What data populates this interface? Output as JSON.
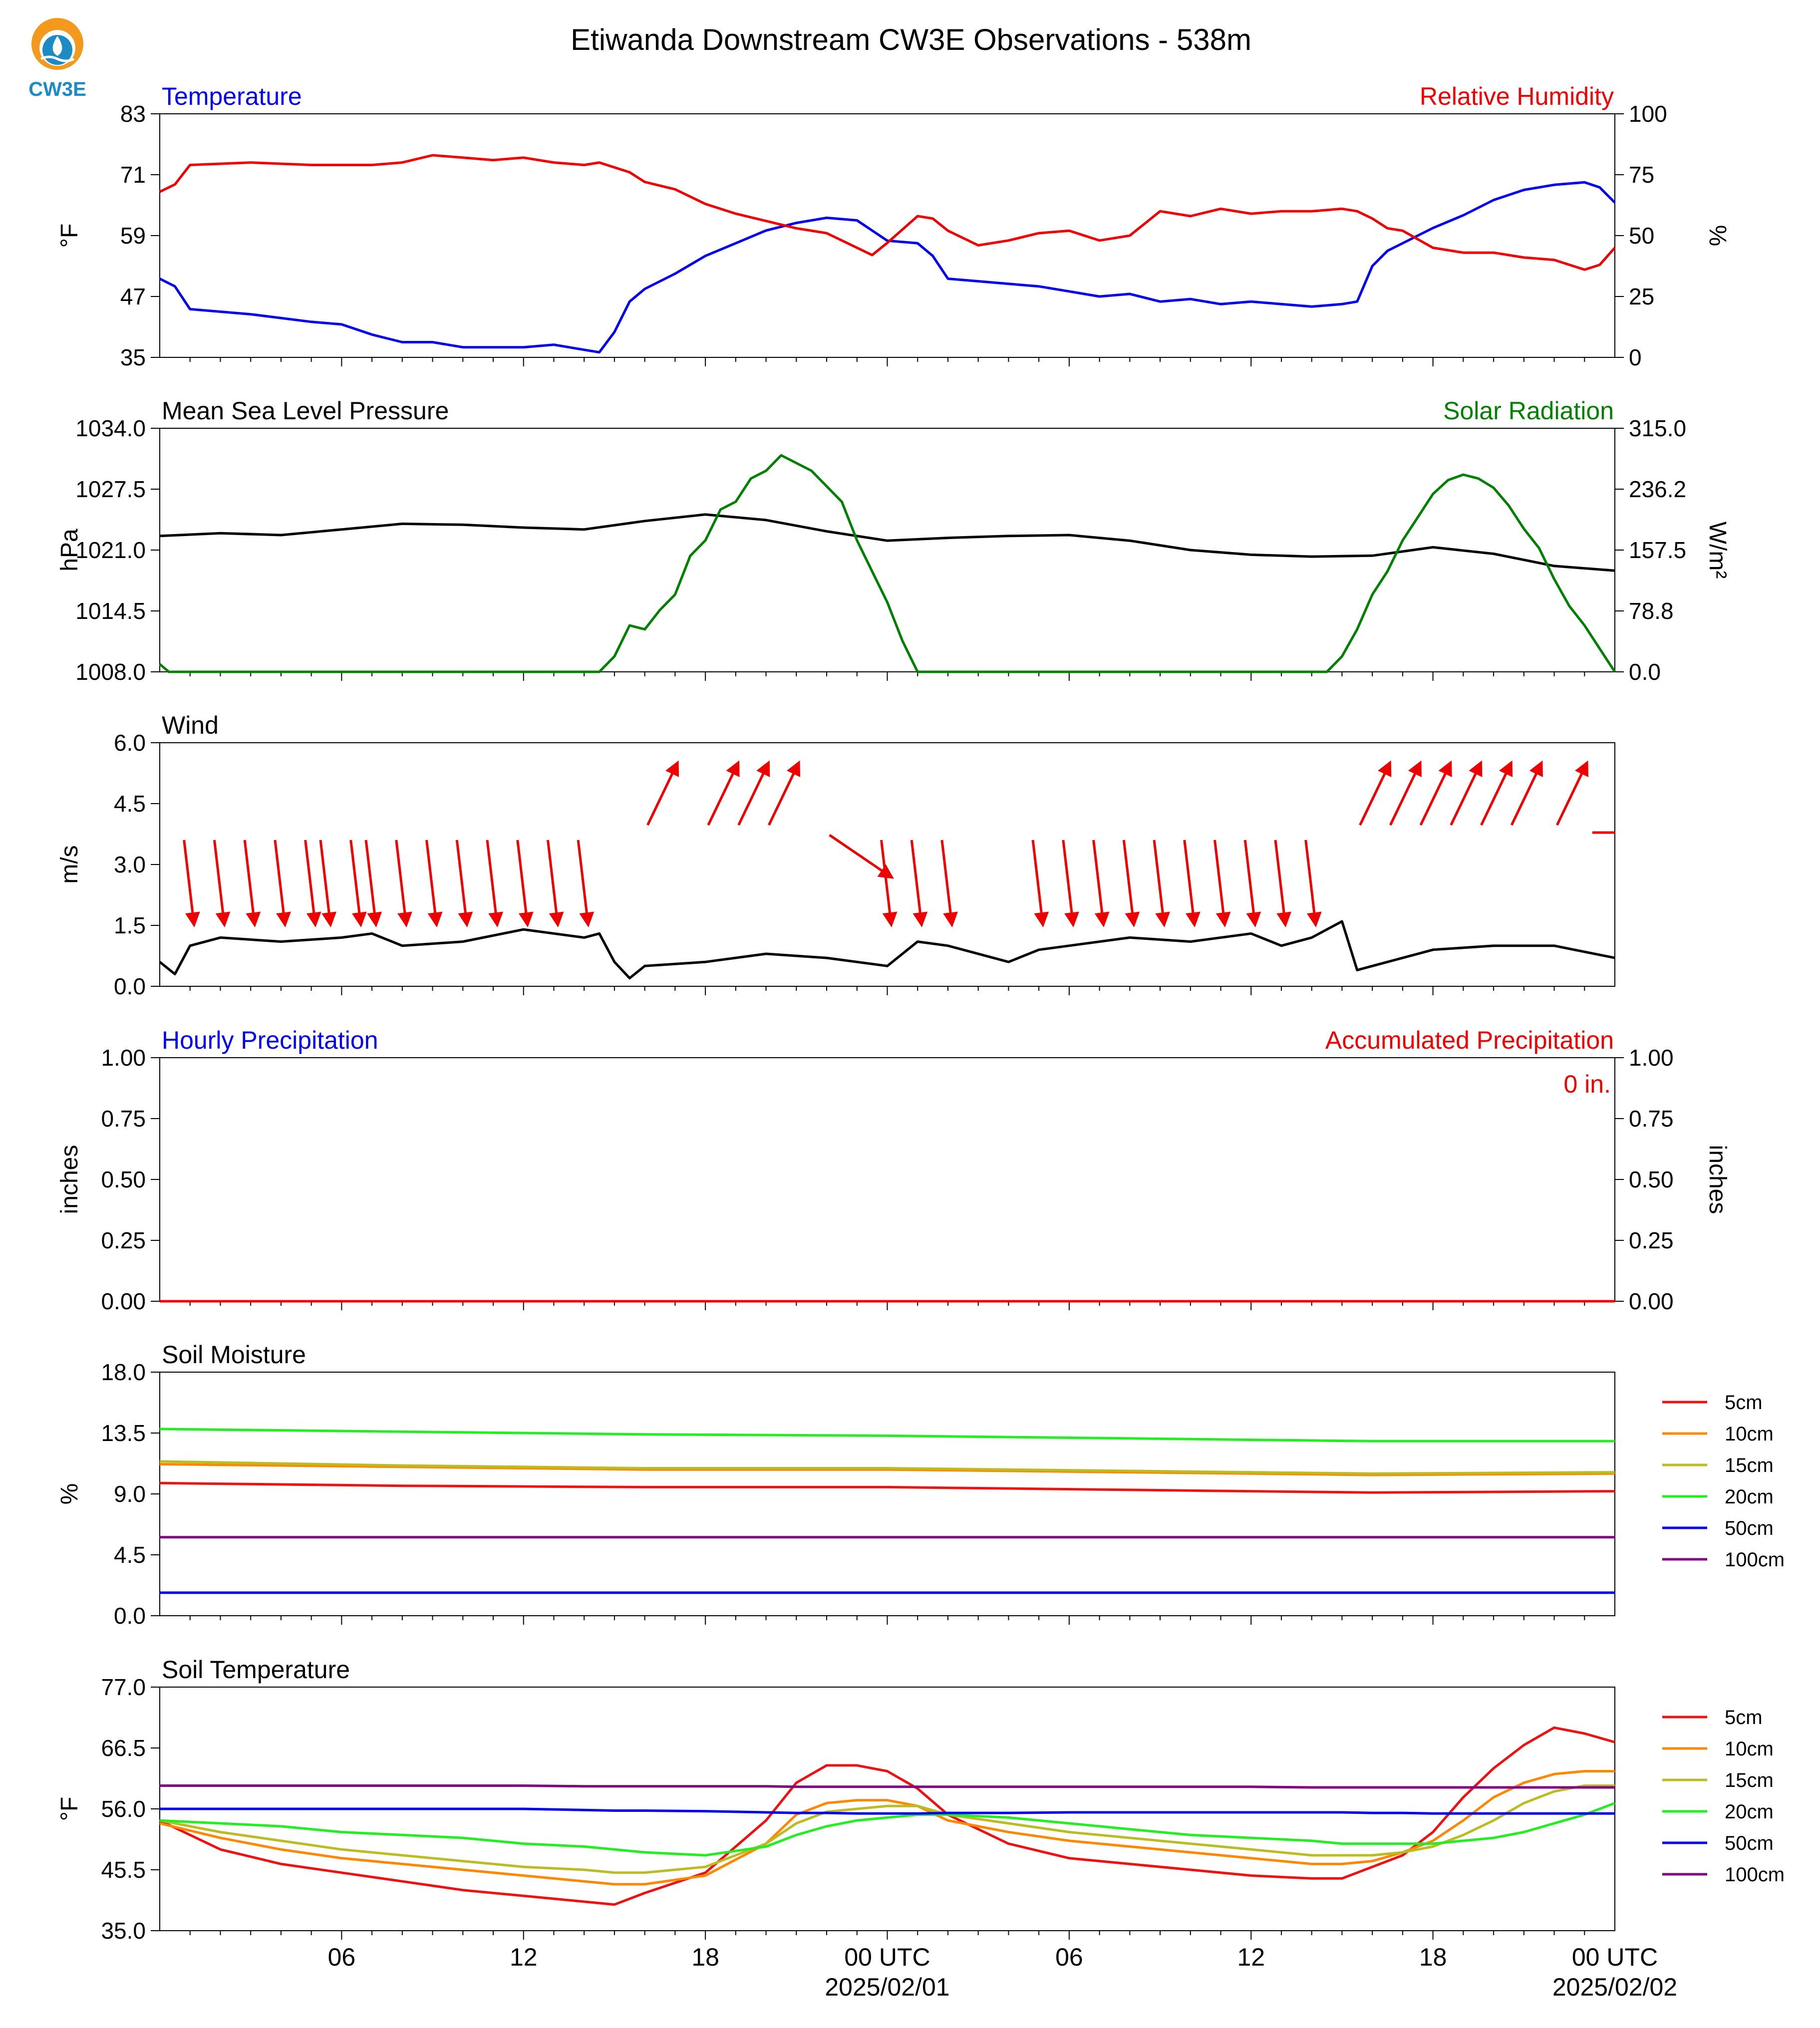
{
  "figure": {
    "title": "Etiwanda Downstream CW3E Observations - 538m",
    "logo": {
      "text": "CW3E",
      "name": "cw3e-logo"
    },
    "x_axis": {
      "tick_labels": [
        "06",
        "12",
        "18",
        "00 UTC",
        "06",
        "12",
        "18",
        "00 UTC"
      ],
      "date_labels": [
        "2025/02/01",
        "2025/02/02"
      ]
    }
  },
  "chart_data": [
    {
      "id": "temp_rh",
      "type": "line",
      "title_left": "Temperature",
      "title_right": "Relative Humidity",
      "ylabel": "°F",
      "ylabel_right": "%",
      "ylim": [
        35,
        83
      ],
      "yticks": [
        "35",
        "47",
        "59",
        "71",
        "83"
      ],
      "ylim_right": [
        0,
        100
      ],
      "yticks_right": [
        "0",
        "25",
        "50",
        "75",
        "100"
      ],
      "x_hours": [
        0,
        0.5,
        1,
        3,
        5,
        6,
        7,
        8,
        9,
        10,
        11,
        12,
        13,
        14,
        14.5,
        15,
        15.5,
        16,
        17,
        18,
        19,
        20,
        21,
        22,
        23,
        23.5,
        24,
        25,
        25.5,
        26,
        27,
        28,
        29,
        30,
        31,
        32,
        33,
        34,
        35,
        36,
        37,
        38,
        39,
        39.5,
        40,
        40.5,
        41,
        42,
        43,
        44,
        45,
        46,
        47,
        47.5,
        48
      ],
      "series": [
        {
          "name": "Temperature",
          "color": "#0000ee",
          "values": [
            50.5,
            49.0,
            44.5,
            43.5,
            42.0,
            41.5,
            39.5,
            38.0,
            38.0,
            37.0,
            37.0,
            37.0,
            37.5,
            36.5,
            36.0,
            40.0,
            46.0,
            48.5,
            51.5,
            55.0,
            57.5,
            60.0,
            61.5,
            62.5,
            62.0,
            60.0,
            58.0,
            57.5,
            55.0,
            50.5,
            50.0,
            49.5,
            49.0,
            48.0,
            47.0,
            47.5,
            46.0,
            46.5,
            45.5,
            46.0,
            45.5,
            45.0,
            45.5,
            46.0,
            53.0,
            56.0,
            57.5,
            60.5,
            63.0,
            66.0,
            68.0,
            69.0,
            69.5,
            68.5,
            65.5
          ]
        },
        {
          "name": "Relative Humidity",
          "color": "#ee0000",
          "values": [
            68,
            71,
            79,
            80,
            79,
            79,
            79,
            80,
            83,
            82,
            81,
            82,
            80,
            79,
            80,
            78,
            76,
            72,
            69,
            63,
            59,
            56,
            53,
            51,
            45,
            42,
            47,
            58,
            57,
            52,
            46,
            48,
            51,
            52,
            48,
            50,
            60,
            58,
            61,
            59,
            60,
            60,
            61,
            60,
            57,
            53,
            52,
            45,
            43,
            43,
            41,
            40,
            36,
            38,
            45
          ]
        }
      ]
    },
    {
      "id": "pressure_solar",
      "type": "line",
      "title_left": "Mean Sea Level Pressure",
      "title_right": "Solar Radiation",
      "ylabel": "hPa",
      "ylabel_right": "W/m²",
      "ylim": [
        1008.0,
        1034.0
      ],
      "yticks": [
        "1008.0",
        "1014.5",
        "1021.0",
        "1027.5",
        "1034.0"
      ],
      "ylim_right": [
        0.0,
        315.0
      ],
      "yticks_right": [
        "0.0",
        "78.8",
        "157.5",
        "236.2",
        "315.0"
      ],
      "series": [
        {
          "name": "Mean Sea Level Pressure",
          "color": "#000000",
          "x_hours": [
            0,
            2,
            4,
            6,
            8,
            10,
            12,
            14,
            16,
            18,
            20,
            22,
            24,
            26,
            28,
            30,
            32,
            34,
            36,
            38,
            40,
            42,
            44,
            46,
            48
          ],
          "values": [
            1022.5,
            1022.8,
            1022.6,
            1023.2,
            1023.8,
            1023.7,
            1023.4,
            1023.2,
            1024.1,
            1024.8,
            1024.2,
            1023.0,
            1022.0,
            1022.3,
            1022.5,
            1022.6,
            1022.0,
            1021.0,
            1020.5,
            1020.3,
            1020.4,
            1021.3,
            1020.6,
            1019.3,
            1018.8
          ]
        },
        {
          "name": "Solar Radiation",
          "color": "#008000",
          "x_hours": [
            0,
            0.3,
            14,
            14.5,
            15,
            15.5,
            16,
            16.5,
            17,
            17.5,
            18,
            18.5,
            19,
            19.5,
            20,
            20.5,
            21,
            21.5,
            22,
            22.5,
            23,
            23.5,
            24,
            24.5,
            25,
            38,
            38.5,
            39,
            39.5,
            40,
            40.5,
            41,
            41.5,
            42,
            42.5,
            43,
            43.5,
            44,
            44.5,
            45,
            45.5,
            46,
            46.5,
            47,
            47.5,
            48
          ],
          "values": [
            10,
            0,
            0,
            0,
            20,
            60,
            55,
            80,
            100,
            150,
            170,
            210,
            220,
            250,
            260,
            280,
            270,
            260,
            240,
            220,
            170,
            130,
            90,
            40,
            0,
            0,
            0,
            20,
            55,
            100,
            130,
            170,
            200,
            230,
            248,
            255,
            250,
            238,
            215,
            185,
            160,
            120,
            85,
            60,
            30,
            0
          ]
        }
      ]
    },
    {
      "id": "wind",
      "type": "line",
      "title_left": "Wind",
      "ylabel": "m/s",
      "ylim": [
        0.0,
        6.0
      ],
      "yticks": [
        "0.0",
        "1.5",
        "3.0",
        "4.5",
        "6.0"
      ],
      "series": [
        {
          "name": "Wind",
          "color": "#000000",
          "x_hours": [
            0,
            0.5,
            1,
            2,
            4,
            6,
            7,
            8,
            10,
            12,
            14,
            14.5,
            15,
            15.5,
            16,
            18,
            20,
            22,
            24,
            25,
            26,
            27,
            28,
            29,
            30,
            32,
            34,
            36,
            37,
            38,
            39,
            39.5,
            40,
            40.5,
            41,
            42,
            44,
            46,
            48
          ],
          "values": [
            0.6,
            0.3,
            1.0,
            1.2,
            1.1,
            1.2,
            1.3,
            1.0,
            1.1,
            1.4,
            1.2,
            1.3,
            0.6,
            0.2,
            0.5,
            0.6,
            0.8,
            0.7,
            0.5,
            1.1,
            1.0,
            0.8,
            0.6,
            0.9,
            1.0,
            1.2,
            1.1,
            1.3,
            1.0,
            1.2,
            1.6,
            0.4,
            0.5,
            0.6,
            0.7,
            0.9,
            1.0,
            1.0,
            0.7
          ]
        }
      ],
      "barbs": [
        {
          "x_hours": 1.0,
          "dir": "down"
        },
        {
          "x_hours": 2.0,
          "dir": "down"
        },
        {
          "x_hours": 3.0,
          "dir": "down"
        },
        {
          "x_hours": 4.0,
          "dir": "down"
        },
        {
          "x_hours": 5.0,
          "dir": "down"
        },
        {
          "x_hours": 5.5,
          "dir": "down"
        },
        {
          "x_hours": 6.5,
          "dir": "down"
        },
        {
          "x_hours": 7.0,
          "dir": "down"
        },
        {
          "x_hours": 8.0,
          "dir": "down"
        },
        {
          "x_hours": 9.0,
          "dir": "down"
        },
        {
          "x_hours": 10.0,
          "dir": "down"
        },
        {
          "x_hours": 11.0,
          "dir": "down"
        },
        {
          "x_hours": 12.0,
          "dir": "down"
        },
        {
          "x_hours": 13.0,
          "dir": "down"
        },
        {
          "x_hours": 14.0,
          "dir": "down"
        },
        {
          "x_hours": 17.0,
          "dir": "up"
        },
        {
          "x_hours": 19.0,
          "dir": "up"
        },
        {
          "x_hours": 20.0,
          "dir": "up"
        },
        {
          "x_hours": 21.0,
          "dir": "up"
        },
        {
          "x_hours": 23.0,
          "dir": "right"
        },
        {
          "x_hours": 24.0,
          "dir": "down"
        },
        {
          "x_hours": 25.0,
          "dir": "down"
        },
        {
          "x_hours": 26.0,
          "dir": "down"
        },
        {
          "x_hours": 29.0,
          "dir": "down"
        },
        {
          "x_hours": 30.0,
          "dir": "down"
        },
        {
          "x_hours": 31.0,
          "dir": "down"
        },
        {
          "x_hours": 32.0,
          "dir": "down"
        },
        {
          "x_hours": 33.0,
          "dir": "down"
        },
        {
          "x_hours": 34.0,
          "dir": "down"
        },
        {
          "x_hours": 35.0,
          "dir": "down"
        },
        {
          "x_hours": 36.0,
          "dir": "down"
        },
        {
          "x_hours": 37.0,
          "dir": "down"
        },
        {
          "x_hours": 38.0,
          "dir": "down"
        },
        {
          "x_hours": 40.5,
          "dir": "up"
        },
        {
          "x_hours": 41.5,
          "dir": "up"
        },
        {
          "x_hours": 42.5,
          "dir": "up"
        },
        {
          "x_hours": 43.5,
          "dir": "up"
        },
        {
          "x_hours": 44.5,
          "dir": "up"
        },
        {
          "x_hours": 45.5,
          "dir": "up"
        },
        {
          "x_hours": 47.0,
          "dir": "up"
        }
      ]
    },
    {
      "id": "precip",
      "type": "line",
      "title_left": "Hourly Precipitation",
      "title_right": "Accumulated Precipitation",
      "annotation": "0 in.",
      "ylabel": "inches",
      "ylabel_right": "inches",
      "ylim": [
        0.0,
        1.0
      ],
      "yticks": [
        "0.00",
        "0.25",
        "0.50",
        "0.75",
        "1.00"
      ],
      "ylim_right": [
        0.0,
        1.0
      ],
      "yticks_right": [
        "0.00",
        "0.25",
        "0.50",
        "0.75",
        "1.00"
      ],
      "series": [
        {
          "name": "Accumulated Precipitation",
          "color": "#ee0000",
          "x_hours": [
            0,
            48
          ],
          "values": [
            0,
            0
          ]
        }
      ]
    },
    {
      "id": "soil_moisture",
      "type": "line",
      "title_left": "Soil Moisture",
      "ylabel": "%",
      "ylim": [
        0.0,
        18.0
      ],
      "yticks": [
        "0.0",
        "4.5",
        "9.0",
        "13.5",
        "18.0"
      ],
      "x_hours": [
        0,
        8,
        16,
        24,
        32,
        40,
        48
      ],
      "series": [
        {
          "name": "5cm",
          "color": "#ee1111",
          "values": [
            9.8,
            9.6,
            9.5,
            9.5,
            9.3,
            9.1,
            9.2
          ]
        },
        {
          "name": "10cm",
          "color": "#ff8800",
          "values": [
            11.2,
            11.0,
            10.8,
            10.8,
            10.6,
            10.4,
            10.5
          ]
        },
        {
          "name": "15cm",
          "color": "#bbbb22",
          "values": [
            11.4,
            11.1,
            10.9,
            10.9,
            10.7,
            10.5,
            10.6
          ]
        },
        {
          "name": "20cm",
          "color": "#22ee22",
          "values": [
            13.8,
            13.6,
            13.4,
            13.3,
            13.1,
            12.9,
            12.9
          ]
        },
        {
          "name": "50cm",
          "color": "#0000ee",
          "values": [
            1.7,
            1.7,
            1.7,
            1.7,
            1.7,
            1.7,
            1.7
          ]
        },
        {
          "name": "100cm",
          "color": "#800080",
          "values": [
            5.8,
            5.8,
            5.8,
            5.8,
            5.8,
            5.8,
            5.8
          ]
        }
      ]
    },
    {
      "id": "soil_temperature",
      "type": "line",
      "title_left": "Soil Temperature",
      "ylabel": "°F",
      "ylim": [
        35.0,
        77.0
      ],
      "yticks": [
        "35.0",
        "45.5",
        "56.0",
        "66.5",
        "77.0"
      ],
      "x_hours": [
        0,
        2,
        4,
        6,
        8,
        10,
        12,
        14,
        15,
        16,
        18,
        20,
        21,
        22,
        23,
        24,
        25,
        26,
        28,
        30,
        32,
        34,
        36,
        38,
        39,
        40,
        41,
        42,
        43,
        44,
        45,
        46,
        47,
        48
      ],
      "series": [
        {
          "name": "5cm",
          "color": "#ee1111",
          "values": [
            54.0,
            49.0,
            46.5,
            45.0,
            43.5,
            42.0,
            41.0,
            40.0,
            39.5,
            41.5,
            45.0,
            54.0,
            60.5,
            63.5,
            63.5,
            62.5,
            59.5,
            55.0,
            50.0,
            47.5,
            46.5,
            45.5,
            44.5,
            44.0,
            44.0,
            46.0,
            48.0,
            52.0,
            58.0,
            63.0,
            67.0,
            70.0,
            69.0,
            67.5
          ]
        },
        {
          "name": "10cm",
          "color": "#ff8800",
          "values": [
            53.5,
            51.0,
            49.0,
            47.5,
            46.5,
            45.5,
            44.5,
            43.5,
            43.0,
            43.0,
            44.5,
            50.0,
            55.0,
            57.0,
            57.5,
            57.5,
            56.5,
            54.0,
            52.0,
            50.5,
            49.5,
            48.5,
            47.5,
            46.5,
            46.5,
            47.0,
            48.5,
            50.5,
            54.0,
            58.0,
            60.5,
            62.0,
            62.5,
            62.5
          ]
        },
        {
          "name": "15cm",
          "color": "#bbbb22",
          "values": [
            54.0,
            52.0,
            50.5,
            49.0,
            48.0,
            47.0,
            46.0,
            45.5,
            45.0,
            45.0,
            46.0,
            50.0,
            53.5,
            55.5,
            56.0,
            56.5,
            56.5,
            55.0,
            53.5,
            52.0,
            51.0,
            50.0,
            49.0,
            48.0,
            48.0,
            48.0,
            48.5,
            49.5,
            51.5,
            54.0,
            57.0,
            59.0,
            60.0,
            60.0
          ]
        },
        {
          "name": "20cm",
          "color": "#22ee22",
          "values": [
            54.0,
            53.5,
            53.0,
            52.0,
            51.5,
            51.0,
            50.0,
            49.5,
            49.0,
            48.5,
            48.0,
            49.5,
            51.5,
            53.0,
            54.0,
            54.5,
            55.0,
            55.0,
            54.5,
            53.5,
            52.5,
            51.5,
            51.0,
            50.5,
            50.0,
            50.0,
            50.0,
            50.0,
            50.5,
            51.0,
            52.0,
            53.5,
            55.0,
            57.0
          ]
        },
        {
          "name": "50cm",
          "color": "#0000ee",
          "values": [
            56.0,
            56.0,
            56.0,
            56.0,
            56.0,
            56.0,
            56.0,
            55.8,
            55.7,
            55.7,
            55.6,
            55.4,
            55.3,
            55.3,
            55.2,
            55.2,
            55.2,
            55.3,
            55.3,
            55.4,
            55.4,
            55.4,
            55.4,
            55.4,
            55.4,
            55.3,
            55.3,
            55.2,
            55.2,
            55.2,
            55.2,
            55.2,
            55.2,
            55.2
          ]
        },
        {
          "name": "100cm",
          "color": "#800080",
          "values": [
            60.0,
            60.0,
            60.0,
            60.0,
            60.0,
            60.0,
            60.0,
            59.9,
            59.9,
            59.9,
            59.9,
            59.9,
            59.8,
            59.8,
            59.8,
            59.8,
            59.8,
            59.8,
            59.8,
            59.8,
            59.8,
            59.8,
            59.8,
            59.7,
            59.7,
            59.7,
            59.7,
            59.7,
            59.7,
            59.7,
            59.7,
            59.7,
            59.7,
            59.7
          ]
        }
      ]
    }
  ]
}
